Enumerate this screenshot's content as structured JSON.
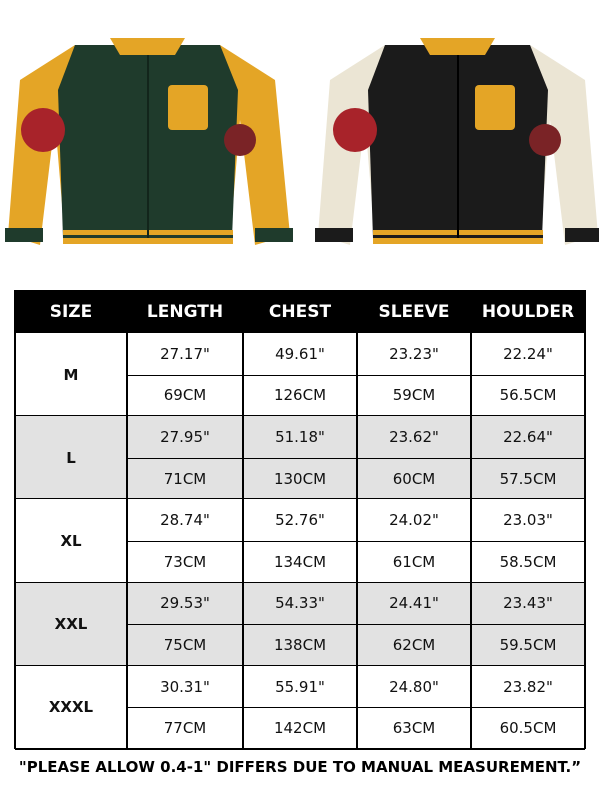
{
  "table": {
    "header": [
      "SIZE",
      "LENGTH",
      "CHEST",
      "SLEEVE",
      "HOULDER"
    ],
    "rows": [
      {
        "size": "M",
        "inch": [
          "27.17\"",
          "49.61\"",
          "23.23\"",
          "22.24\""
        ],
        "cm": [
          "69CM",
          "126CM",
          "59CM",
          "56.5CM"
        ]
      },
      {
        "size": "L",
        "inch": [
          "27.95\"",
          "51.18\"",
          "23.62\"",
          "22.64\""
        ],
        "cm": [
          "71CM",
          "130CM",
          "60CM",
          "57.5CM"
        ]
      },
      {
        "size": "XL",
        "inch": [
          "28.74\"",
          "52.76\"",
          "24.02\"",
          "23.03\""
        ],
        "cm": [
          "73CM",
          "134CM",
          "61CM",
          "58.5CM"
        ]
      },
      {
        "size": "XXL",
        "inch": [
          "29.53\"",
          "54.33\"",
          "24.41\"",
          "23.43\""
        ],
        "cm": [
          "75CM",
          "138CM",
          "62CM",
          "59.5CM"
        ]
      },
      {
        "size": "XXXL",
        "inch": [
          "30.31\"",
          "55.91\"",
          "24.80\"",
          "23.82\""
        ],
        "cm": [
          "77CM",
          "142CM",
          "63CM",
          "60.5CM"
        ]
      }
    ]
  },
  "note": "\"PLEASE ALLOW 0.4-1\" DIFFERS DUE TO MANUAL MEASUREMENT.”"
}
